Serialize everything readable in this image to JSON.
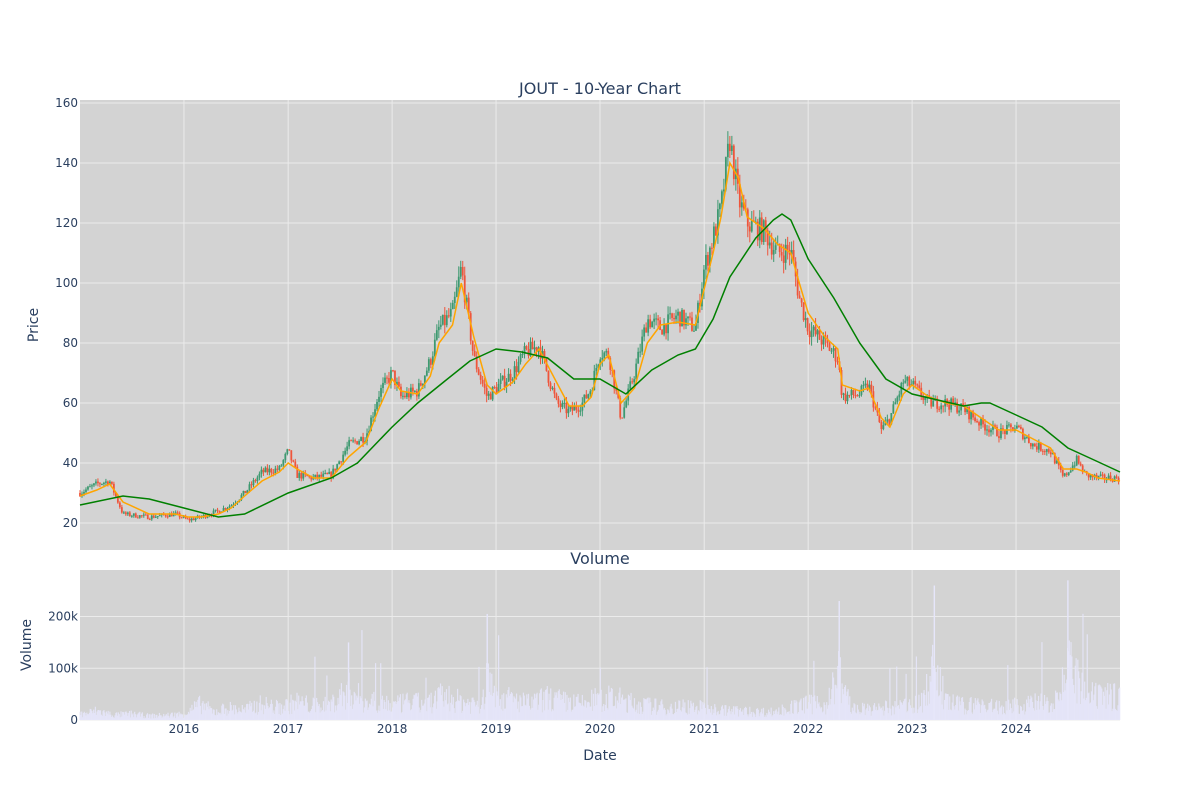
{
  "chart_data": [
    {
      "type": "candlestick",
      "title": "JOUT - 10-Year Chart",
      "xlabel": "",
      "ylabel": "Price",
      "ylim": [
        11,
        161
      ],
      "xlim": [
        "2015-01-01",
        "2024-12-31"
      ],
      "yticks": [
        20,
        40,
        60,
        80,
        100,
        120,
        140,
        160
      ],
      "grid": true,
      "legend": "none",
      "colors": {
        "plot_bg": "#d3d3d3",
        "grid": "#ebebeb",
        "increasing": "#3d9970",
        "decreasing": "#ef553b",
        "sma_short": "#ffa500",
        "sma_long": "#008000"
      },
      "series": [
        {
          "style": "candles",
          "x": [
            "2015-01-01",
            "2015-03-01",
            "2015-04-15",
            "2015-06-01",
            "2015-09-01",
            "2015-12-01",
            "2016-01-15",
            "2016-03-01",
            "2016-05-01",
            "2016-06-15",
            "2016-08-01",
            "2016-10-01",
            "2016-12-01",
            "2017-01-01",
            "2017-02-01",
            "2017-04-01",
            "2017-06-01",
            "2017-08-01",
            "2017-10-01",
            "2017-11-15",
            "2018-01-01",
            "2018-02-01",
            "2018-04-01",
            "2018-05-15",
            "2018-06-15",
            "2018-08-01",
            "2018-09-01",
            "2018-10-15",
            "2018-12-01",
            "2019-01-01",
            "2019-03-01",
            "2019-04-15",
            "2019-06-01",
            "2019-08-01",
            "2019-09-15",
            "2019-11-01",
            "2019-12-01",
            "2020-01-01",
            "2020-02-01",
            "2020-03-15",
            "2020-05-01",
            "2020-06-15",
            "2020-08-01",
            "2020-10-01",
            "2020-12-01",
            "2021-01-01",
            "2021-02-01",
            "2021-03-01",
            "2021-04-01",
            "2021-05-01",
            "2021-06-01",
            "2021-08-01",
            "2021-09-15",
            "2021-11-01",
            "2021-12-01",
            "2022-01-01",
            "2022-03-01",
            "2022-04-15",
            "2022-05-01",
            "2022-07-01",
            "2022-08-01",
            "2022-09-15",
            "2022-10-15",
            "2022-12-01",
            "2023-01-01",
            "2023-03-01",
            "2023-05-01",
            "2023-07-01",
            "2023-09-01",
            "2023-11-01",
            "2024-01-01",
            "2024-03-01",
            "2024-05-01",
            "2024-06-15",
            "2024-08-01",
            "2024-09-01",
            "2024-10-15",
            "2024-12-31"
          ],
          "y": [
            30,
            33,
            34,
            23,
            22,
            23,
            21,
            22,
            24,
            26,
            30,
            37,
            38,
            44,
            36,
            35,
            36,
            46,
            49,
            63,
            70,
            62,
            64,
            74,
            85,
            90,
            105,
            75,
            62,
            65,
            70,
            77,
            79,
            60,
            57,
            60,
            65,
            77,
            76,
            55,
            70,
            88,
            85,
            89,
            85,
            105,
            115,
            125,
            148,
            128,
            120,
            117,
            110,
            111,
            95,
            85,
            80,
            75,
            62,
            63,
            66,
            51,
            55,
            67,
            66,
            60,
            60,
            58,
            53,
            50,
            52,
            46,
            44,
            35,
            41,
            36,
            35,
            35
          ]
        },
        {
          "name": "",
          "style": "line",
          "color": "#ffa500",
          "x": [
            "2015-01-01",
            "2015-03-01",
            "2015-04-15",
            "2015-06-01",
            "2015-09-01",
            "2015-12-01",
            "2016-01-15",
            "2016-03-01",
            "2016-05-01",
            "2016-06-15",
            "2016-08-01",
            "2016-10-01",
            "2016-12-01",
            "2017-01-01",
            "2017-02-01",
            "2017-04-01",
            "2017-06-01",
            "2017-08-01",
            "2017-10-01",
            "2017-11-15",
            "2018-01-01",
            "2018-02-01",
            "2018-04-01",
            "2018-05-15",
            "2018-06-15",
            "2018-08-01",
            "2018-09-01",
            "2018-10-15",
            "2018-12-01",
            "2019-01-01",
            "2019-03-01",
            "2019-04-15",
            "2019-06-01",
            "2019-08-01",
            "2019-09-15",
            "2019-11-01",
            "2019-12-01",
            "2020-01-01",
            "2020-02-01",
            "2020-03-15",
            "2020-05-01",
            "2020-06-15",
            "2020-08-01",
            "2020-10-01",
            "2020-12-01",
            "2021-01-01",
            "2021-02-01",
            "2021-03-01",
            "2021-04-01",
            "2021-05-01",
            "2021-06-01",
            "2021-08-01",
            "2021-09-15",
            "2021-11-01",
            "2021-12-01",
            "2022-01-01",
            "2022-03-01",
            "2022-04-15",
            "2022-05-01",
            "2022-07-01",
            "2022-08-01",
            "2022-09-15",
            "2022-10-15",
            "2022-12-01",
            "2023-01-01",
            "2023-03-01",
            "2023-05-01",
            "2023-07-01",
            "2023-09-01",
            "2023-11-01",
            "2024-01-01",
            "2024-03-01",
            "2024-05-01",
            "2024-06-15",
            "2024-08-01",
            "2024-09-01",
            "2024-10-15",
            "2024-12-31"
          ],
          "y": [
            29,
            31,
            33,
            27,
            23,
            23,
            22,
            22,
            23,
            25,
            29,
            34,
            37,
            40,
            38,
            35,
            35,
            42,
            47,
            58,
            68,
            64,
            63,
            69,
            80,
            86,
            100,
            82,
            66,
            63,
            67,
            73,
            78,
            67,
            59,
            59,
            62,
            73,
            76,
            60,
            65,
            80,
            86,
            87,
            86,
            98,
            110,
            122,
            140,
            135,
            122,
            118,
            113,
            110,
            100,
            90,
            82,
            78,
            66,
            64,
            65,
            55,
            52,
            63,
            66,
            62,
            60,
            59,
            55,
            51,
            51,
            48,
            45,
            38,
            38,
            37,
            35,
            34
          ]
        },
        {
          "name": "",
          "style": "line",
          "color": "#008000",
          "x": [
            "2015-01-01",
            "2015-06-01",
            "2015-09-01",
            "2016-01-01",
            "2016-05-01",
            "2016-08-01",
            "2017-01-01",
            "2017-06-01",
            "2017-09-01",
            "2018-01-01",
            "2018-04-01",
            "2018-07-01",
            "2018-10-01",
            "2019-01-01",
            "2019-04-01",
            "2019-07-01",
            "2019-10-01",
            "2020-01-01",
            "2020-04-01",
            "2020-07-01",
            "2020-10-01",
            "2020-12-01",
            "2021-02-01",
            "2021-04-01",
            "2021-07-01",
            "2021-09-01",
            "2021-10-01",
            "2021-11-01",
            "2022-01-01",
            "2022-04-01",
            "2022-07-01",
            "2022-10-01",
            "2023-01-01",
            "2023-04-01",
            "2023-07-01",
            "2023-09-01",
            "2023-10-01",
            "2024-01-01",
            "2024-04-01",
            "2024-07-01",
            "2024-10-01",
            "2024-12-31"
          ],
          "y": [
            26,
            29,
            28,
            25,
            22,
            23,
            30,
            35,
            40,
            52,
            60,
            67,
            74,
            78,
            77,
            75,
            68,
            68,
            63,
            71,
            76,
            78,
            88,
            102,
            115,
            121,
            123,
            121,
            108,
            95,
            80,
            68,
            63,
            61,
            59,
            60,
            60,
            56,
            52,
            45,
            41,
            37
          ]
        }
      ]
    },
    {
      "type": "bar",
      "title": "Volume",
      "xlabel": "Date",
      "ylabel": "Volume",
      "ylim": [
        0,
        290000
      ],
      "yticks": [
        0,
        100000,
        200000
      ],
      "ytick_labels": [
        "0",
        "100k",
        "200k"
      ],
      "xticks": [
        "2016",
        "2017",
        "2018",
        "2019",
        "2020",
        "2021",
        "2022",
        "2023",
        "2024"
      ],
      "grid": true,
      "colors": {
        "plot_bg": "#d3d3d3",
        "bar": "#e6e6fa"
      },
      "series": [
        {
          "name": "",
          "x": [
            "2015-01-15",
            "2015-03-01",
            "2015-05-01",
            "2015-07-01",
            "2015-09-01",
            "2015-11-15",
            "2016-01-01",
            "2016-03-01",
            "2016-04-15",
            "2016-06-01",
            "2016-08-01",
            "2016-10-01",
            "2016-12-01",
            "2017-02-01",
            "2017-04-01",
            "2017-06-01",
            "2017-08-01",
            "2017-10-01",
            "2017-11-15",
            "2018-01-01",
            "2018-03-01",
            "2018-05-01",
            "2018-07-01",
            "2018-09-01",
            "2018-11-15",
            "2018-12-01",
            "2019-01-15",
            "2019-03-01",
            "2019-05-01",
            "2019-07-01",
            "2019-09-01",
            "2019-11-01",
            "2020-01-01",
            "2020-03-15",
            "2020-05-01",
            "2020-07-01",
            "2020-09-01",
            "2020-11-01",
            "2021-01-01",
            "2021-03-01",
            "2021-05-01",
            "2021-07-01",
            "2021-09-01",
            "2021-11-01",
            "2022-01-01",
            "2022-03-01",
            "2022-04-20",
            "2022-06-01",
            "2022-08-01",
            "2022-10-01",
            "2022-12-01",
            "2023-02-01",
            "2023-03-20",
            "2023-05-01",
            "2023-07-01",
            "2023-09-01",
            "2023-11-01",
            "2024-01-01",
            "2024-03-01",
            "2024-05-01",
            "2024-06-01",
            "2024-07-01",
            "2024-09-01",
            "2024-11-01",
            "2024-12-31"
          ],
          "y": [
            30000,
            45000,
            25000,
            30000,
            20000,
            25000,
            30000,
            80000,
            40000,
            60000,
            50000,
            80000,
            60000,
            90000,
            70000,
            80000,
            150000,
            90000,
            100000,
            70000,
            90000,
            80000,
            120000,
            90000,
            80000,
            205000,
            120000,
            100000,
            80000,
            110000,
            90000,
            80000,
            110000,
            100000,
            80000,
            70000,
            60000,
            70000,
            60000,
            50000,
            45000,
            40000,
            40000,
            60000,
            80000,
            70000,
            230000,
            60000,
            50000,
            60000,
            70000,
            80000,
            260000,
            90000,
            70000,
            80000,
            60000,
            70000,
            80000,
            100000,
            130000,
            270000,
            120000,
            110000,
            130000
          ]
        }
      ]
    }
  ]
}
